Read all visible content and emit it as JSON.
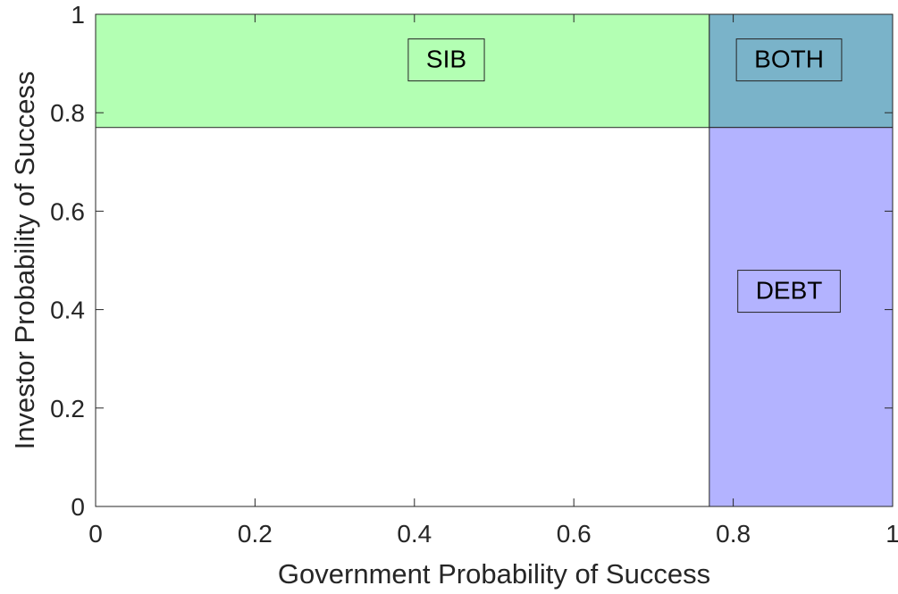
{
  "chart_data": {
    "type": "area",
    "xlabel": "Government Probability of Success",
    "ylabel": "Investor Probability of Success",
    "xlim": [
      0,
      1
    ],
    "ylim": [
      0,
      1
    ],
    "grid": false,
    "x_ticks": [
      "0",
      "0.2",
      "0.4",
      "0.6",
      "0.8",
      "1"
    ],
    "y_ticks": [
      "0",
      "0.2",
      "0.4",
      "0.6",
      "0.8",
      "1"
    ],
    "x_tick_values": [
      0,
      0.2,
      0.4,
      0.6,
      0.8,
      1
    ],
    "y_tick_values": [
      0,
      0.2,
      0.4,
      0.6,
      0.8,
      1
    ],
    "threshold": 0.77,
    "regions": [
      {
        "label": "SIB",
        "x": [
          0,
          0.77
        ],
        "y": [
          0.77,
          1
        ],
        "color": "#b3ffb3",
        "label_at": [
          0.44,
          0.91
        ]
      },
      {
        "label": "BOTH",
        "x": [
          0.77,
          1
        ],
        "y": [
          0.77,
          1
        ],
        "color": "#7ab3c9",
        "label_at": [
          0.87,
          0.91
        ]
      },
      {
        "label": "DEBT",
        "x": [
          0.77,
          1
        ],
        "y": [
          0,
          0.77
        ],
        "color": "#b3b3ff",
        "label_at": [
          0.87,
          0.44
        ]
      }
    ]
  }
}
